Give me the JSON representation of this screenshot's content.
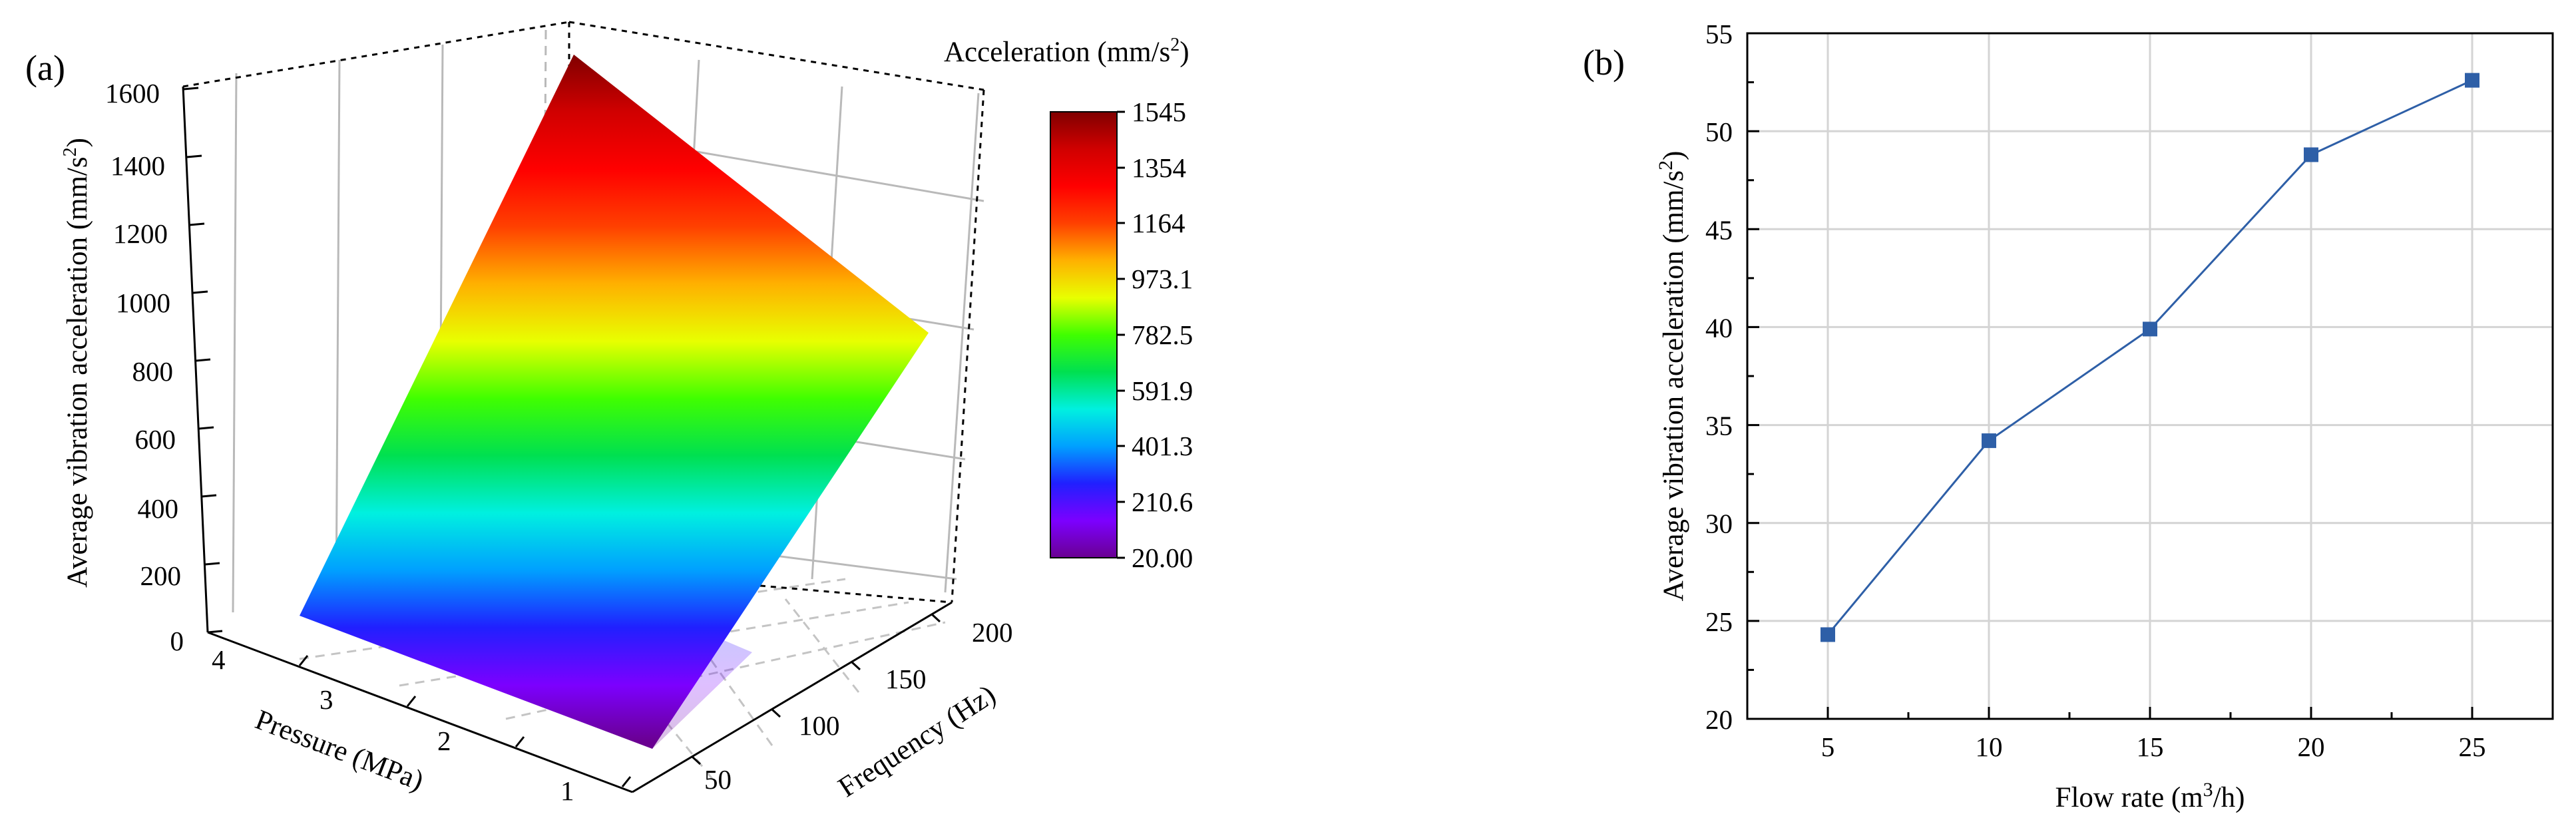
{
  "figure": {
    "panel_a_label": "(a)",
    "panel_b_label": "(b)"
  },
  "chart_data": [
    {
      "id": "a",
      "type": "surface3d",
      "zlabel_prefix": "Average vibration acceleration (mm/s",
      "zlabel_suffix": ")",
      "xlabel": "Pressure (MPa)",
      "ylabel": "Frequency (Hz)",
      "pressure_ticks": [
        "4",
        "3",
        "2",
        "1"
      ],
      "frequency_ticks": [
        "50",
        "100",
        "150",
        "200"
      ],
      "z_ticks": [
        "0",
        "200",
        "400",
        "600",
        "800",
        "1000",
        "1200",
        "1400",
        "1600"
      ],
      "zlim": [
        0,
        1600
      ],
      "surface_corners": [
        {
          "pressure": 4,
          "frequency": 25,
          "z": 20
        },
        {
          "pressure": 4,
          "frequency": 225,
          "z": 1545
        },
        {
          "pressure": 1,
          "frequency": 225,
          "z": 950
        },
        {
          "pressure": 1,
          "frequency": 25,
          "z": 20
        }
      ],
      "colorbar": {
        "title_prefix": "Acceleration (mm/s",
        "title_suffix": ")",
        "min": 20.0,
        "max": 1545,
        "labels": [
          "1545",
          "1354",
          "1164",
          "973.1",
          "782.5",
          "591.9",
          "401.3",
          "210.6",
          "20.00"
        ],
        "stops": [
          "#6a0091",
          "#7c00ff",
          "#2020ff",
          "#00a0ff",
          "#00f0e0",
          "#00e050",
          "#40ff00",
          "#e8ff00",
          "#ffb000",
          "#ff4000",
          "#ff0000",
          "#d00000",
          "#800000"
        ]
      }
    },
    {
      "id": "b",
      "type": "line",
      "xlabel_prefix": "Flow rate (m",
      "xlabel_suffix": "/h)",
      "ylabel_prefix": "Average vibration acceleration (mm/s",
      "ylabel_suffix": ")",
      "x": [
        5,
        10,
        15,
        20,
        25
      ],
      "y": [
        24.3,
        34.2,
        39.9,
        48.8,
        52.6
      ],
      "xlim": [
        2.5,
        27.5
      ],
      "ylim": [
        20,
        55
      ],
      "xticks": [
        "5",
        "10",
        "15",
        "20",
        "25"
      ],
      "yticks": [
        "20",
        "25",
        "30",
        "35",
        "40",
        "45",
        "50",
        "55"
      ],
      "grid": true,
      "color": "#2e5fa7"
    }
  ]
}
